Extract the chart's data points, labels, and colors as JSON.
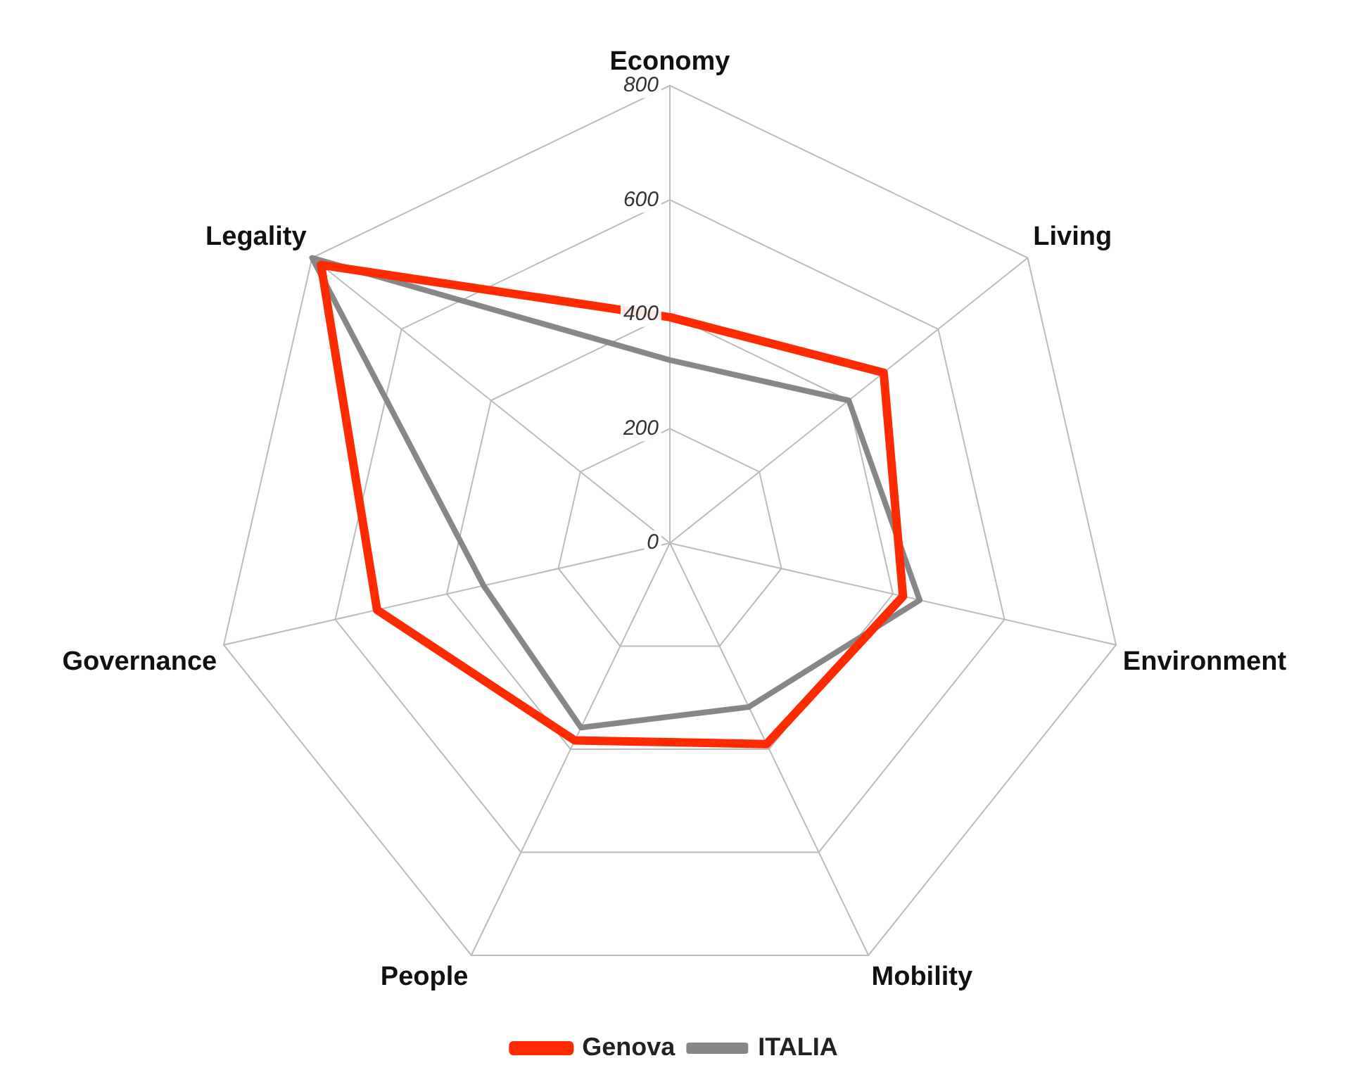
{
  "chart_data": {
    "type": "radar",
    "categories": [
      "Economy",
      "Living",
      "Environment",
      "Mobility",
      "People",
      "Governance",
      "Legality"
    ],
    "series": [
      {
        "name": "Genova",
        "color": "#ff2a00",
        "values": [
          395,
          478,
          418,
          390,
          383,
          525,
          780
        ]
      },
      {
        "name": "ITALIA",
        "color": "#878787",
        "values": [
          320,
          400,
          448,
          318,
          358,
          334,
          800
        ]
      }
    ],
    "ylim": [
      0,
      800
    ],
    "yticks": [
      0,
      200,
      400,
      600,
      800
    ],
    "grid": true,
    "legend": "bottom",
    "marker": "none"
  }
}
